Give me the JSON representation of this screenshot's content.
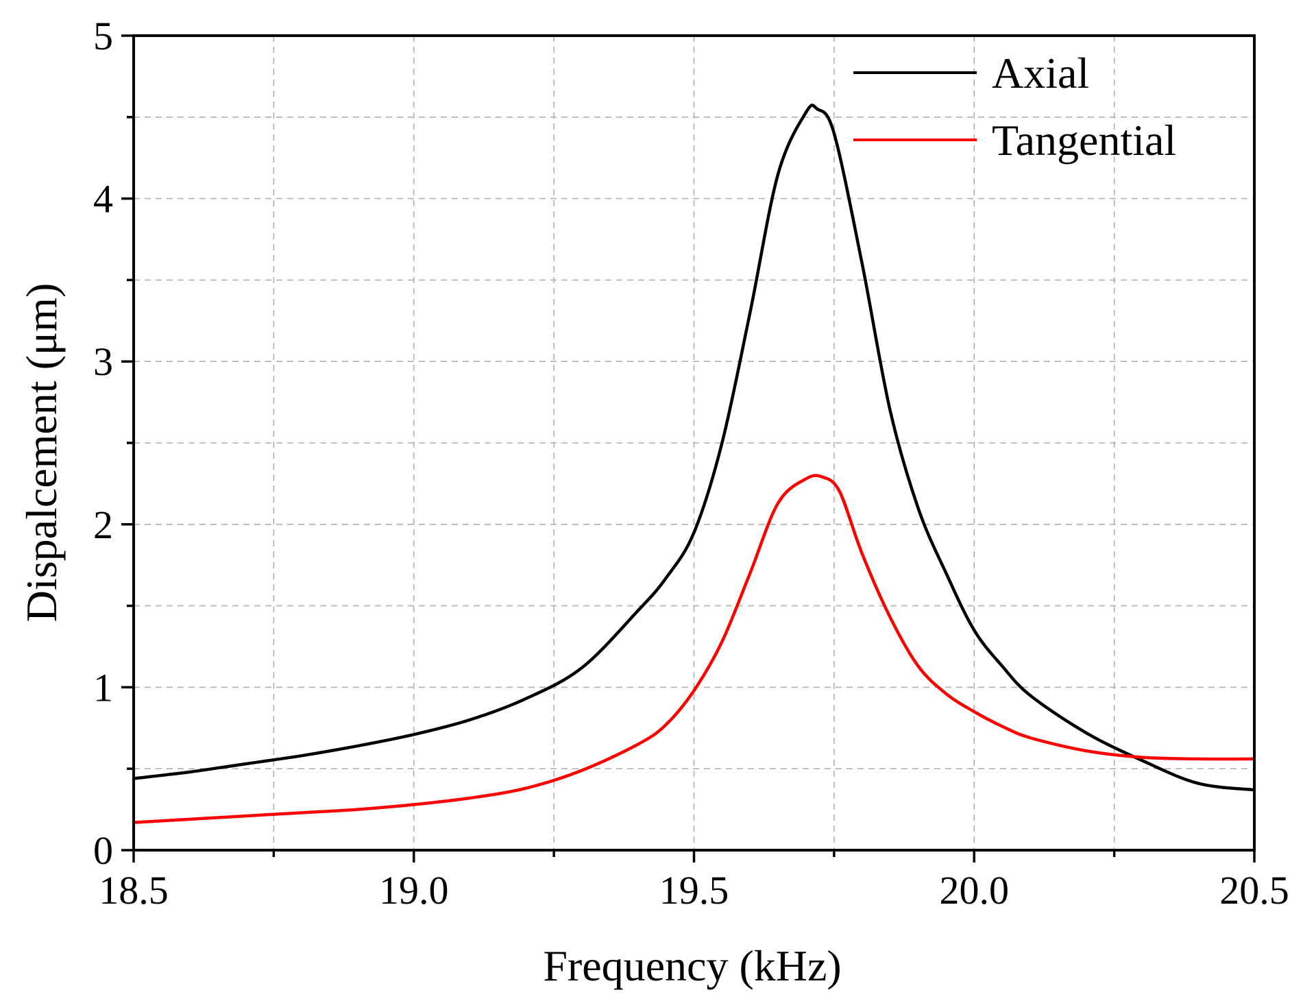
{
  "chart_data": {
    "type": "line",
    "title": "",
    "xlabel": "Frequency (kHz)",
    "ylabel": "Dispalcement (μm)",
    "xlim": [
      18.5,
      20.5
    ],
    "ylim": [
      0,
      5
    ],
    "xticks": [
      18.5,
      19.0,
      19.5,
      20.0,
      20.5
    ],
    "xtick_labels": [
      "18.5",
      "19.0",
      "19.5",
      "20.0",
      "20.5"
    ],
    "yticks": [
      0,
      1,
      2,
      3,
      4,
      5
    ],
    "ytick_labels": [
      "0",
      "1",
      "2",
      "3",
      "4",
      "5"
    ],
    "grid": true,
    "legend_position": "top-right",
    "series": [
      {
        "name": "Axial",
        "color": "#000000",
        "x": [
          18.5,
          18.6,
          18.7,
          18.8,
          18.9,
          19.0,
          19.1,
          19.2,
          19.3,
          19.4,
          19.45,
          19.5,
          19.55,
          19.6,
          19.65,
          19.7,
          19.72,
          19.75,
          19.8,
          19.85,
          19.9,
          19.95,
          20.0,
          20.05,
          20.1,
          20.2,
          20.3,
          20.4,
          20.5
        ],
        "y": [
          0.44,
          0.48,
          0.53,
          0.58,
          0.64,
          0.71,
          0.8,
          0.93,
          1.12,
          1.47,
          1.67,
          1.95,
          2.5,
          3.3,
          4.15,
          4.53,
          4.55,
          4.4,
          3.6,
          2.7,
          2.1,
          1.7,
          1.35,
          1.13,
          0.95,
          0.72,
          0.55,
          0.41,
          0.37
        ]
      },
      {
        "name": "Tangential",
        "color": "#ff0000",
        "x": [
          18.5,
          18.6,
          18.7,
          18.8,
          18.9,
          19.0,
          19.1,
          19.2,
          19.3,
          19.4,
          19.45,
          19.5,
          19.55,
          19.6,
          19.65,
          19.7,
          19.73,
          19.76,
          19.8,
          19.85,
          19.9,
          19.95,
          20.0,
          20.05,
          20.1,
          20.2,
          20.3,
          20.4,
          20.5
        ],
        "y": [
          0.17,
          0.19,
          0.21,
          0.23,
          0.25,
          0.28,
          0.32,
          0.38,
          0.49,
          0.65,
          0.77,
          0.98,
          1.28,
          1.7,
          2.13,
          2.28,
          2.29,
          2.2,
          1.82,
          1.43,
          1.13,
          0.96,
          0.85,
          0.76,
          0.69,
          0.61,
          0.57,
          0.56,
          0.56
        ]
      }
    ]
  }
}
